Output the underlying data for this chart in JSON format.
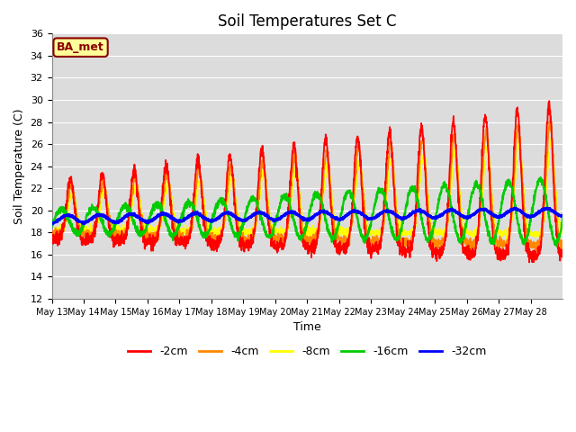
{
  "title": "Soil Temperatures Set C",
  "xlabel": "Time",
  "ylabel": "Soil Temperature (C)",
  "ylim": [
    12,
    36
  ],
  "yticks": [
    12,
    14,
    16,
    18,
    20,
    22,
    24,
    26,
    28,
    30,
    32,
    34,
    36
  ],
  "bg_color": "#dcdcdc",
  "annotation_text": "BA_met",
  "annotation_bg": "#ffff99",
  "annotation_border": "#8B0000",
  "series_colors": {
    "-2cm": "#ff0000",
    "-4cm": "#ff8800",
    "-8cm": "#ffff00",
    "-16cm": "#00cc00",
    "-32cm": "#0000ff"
  },
  "x_tick_labels": [
    "May 13",
    "May 14",
    "May 15",
    "May 16",
    "May 17",
    "May 18",
    "May 19",
    "May 20",
    "May 21",
    "May 22",
    "May 23",
    "May 24",
    "May 25",
    "May 26",
    "May 27",
    "May 28"
  ],
  "n_days": 16
}
